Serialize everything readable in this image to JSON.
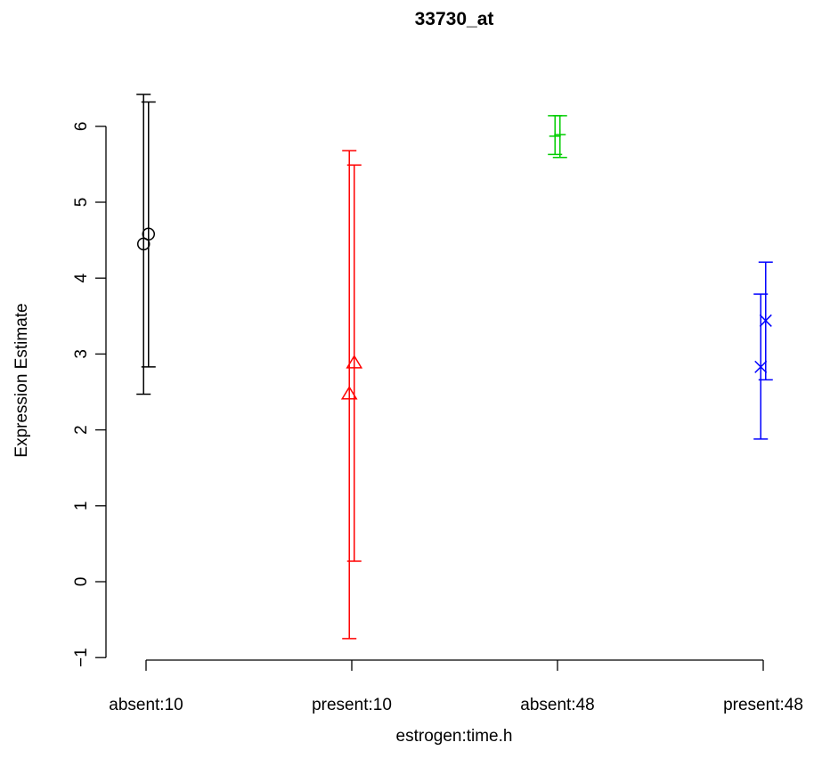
{
  "chart_data": {
    "type": "scatter",
    "title": "33730_at",
    "xlabel": "estrogen:time.h",
    "ylabel": "Expression Estimate",
    "categories": [
      "absent:10",
      "present:10",
      "absent:48",
      "present:48"
    ],
    "y_ticks": [
      "−1",
      "0",
      "1",
      "2",
      "3",
      "4",
      "5",
      "6"
    ],
    "ylim": [
      -1,
      6.5
    ],
    "grid": false,
    "legend": "none",
    "series": [
      {
        "category": "absent:10",
        "color": "#000000",
        "marker": "circle",
        "points": [
          {
            "offset": -0.012,
            "y": 4.45,
            "lo": 2.47,
            "hi": 6.42
          },
          {
            "offset": 0.012,
            "y": 4.58,
            "lo": 2.83,
            "hi": 6.32
          }
        ]
      },
      {
        "category": "present:10",
        "color": "#ff0000",
        "marker": "triangle",
        "points": [
          {
            "offset": -0.012,
            "y": 2.47,
            "lo": -0.75,
            "hi": 5.68
          },
          {
            "offset": 0.012,
            "y": 2.88,
            "lo": 0.27,
            "hi": 5.49
          }
        ]
      },
      {
        "category": "absent:48",
        "color": "#00cd00",
        "marker": "plus",
        "points": [
          {
            "offset": -0.012,
            "y": 5.87,
            "lo": 5.63,
            "hi": 6.14
          },
          {
            "offset": 0.012,
            "y": 5.89,
            "lo": 5.59,
            "hi": 6.14
          }
        ]
      },
      {
        "category": "present:48",
        "color": "#0000ff",
        "marker": "cross",
        "points": [
          {
            "offset": -0.012,
            "y": 2.83,
            "lo": 1.88,
            "hi": 3.79
          },
          {
            "offset": 0.012,
            "y": 3.44,
            "lo": 2.66,
            "hi": 4.21
          }
        ]
      }
    ]
  }
}
